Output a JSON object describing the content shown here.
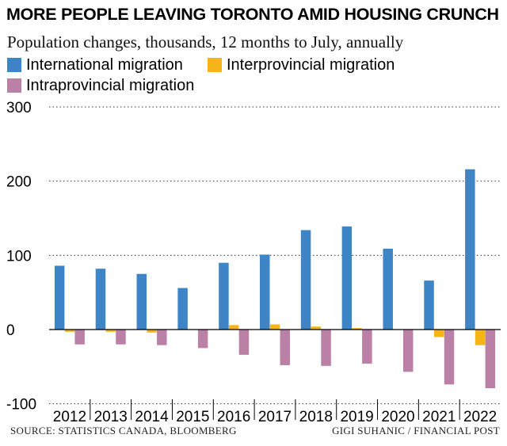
{
  "chart_data": {
    "type": "bar",
    "title": "MORE PEOPLE LEAVING TORONTO AMID HOUSING CRUNCH",
    "subtitle": "Population changes, thousands, 12 months to July, annually",
    "categories": [
      "2012",
      "2013",
      "2014",
      "2015",
      "2016",
      "2017",
      "2018",
      "2019",
      "2020",
      "2021",
      "2022"
    ],
    "series": [
      {
        "name": "International migration",
        "color": "#3d85c6",
        "values": [
          86,
          82,
          75,
          56,
          90,
          101,
          134,
          139,
          109,
          66,
          216
        ]
      },
      {
        "name": "Interprovincial migration",
        "color": "#f6b416",
        "values": [
          -3,
          -3,
          -4,
          0,
          6,
          7,
          4,
          2,
          0,
          -10,
          -21
        ]
      },
      {
        "name": "Intraprovincial migration",
        "color": "#bb80a5",
        "values": [
          -20,
          -20,
          -21,
          -25,
          -34,
          -48,
          -49,
          -46,
          -57,
          -74,
          -79
        ]
      }
    ],
    "yticks": [
      "300",
      "200",
      "100",
      "0",
      "-100"
    ],
    "ytick_values": [
      300,
      200,
      100,
      0,
      -100
    ],
    "ylim": [
      -100,
      300
    ],
    "xlabel": "",
    "ylabel": "",
    "legend_position": "top"
  },
  "footer": {
    "source": "SOURCE: STATISTICS CANADA, BLOOMBERG",
    "credit": "GIGI SUHANIC / FINANCIAL POST"
  }
}
